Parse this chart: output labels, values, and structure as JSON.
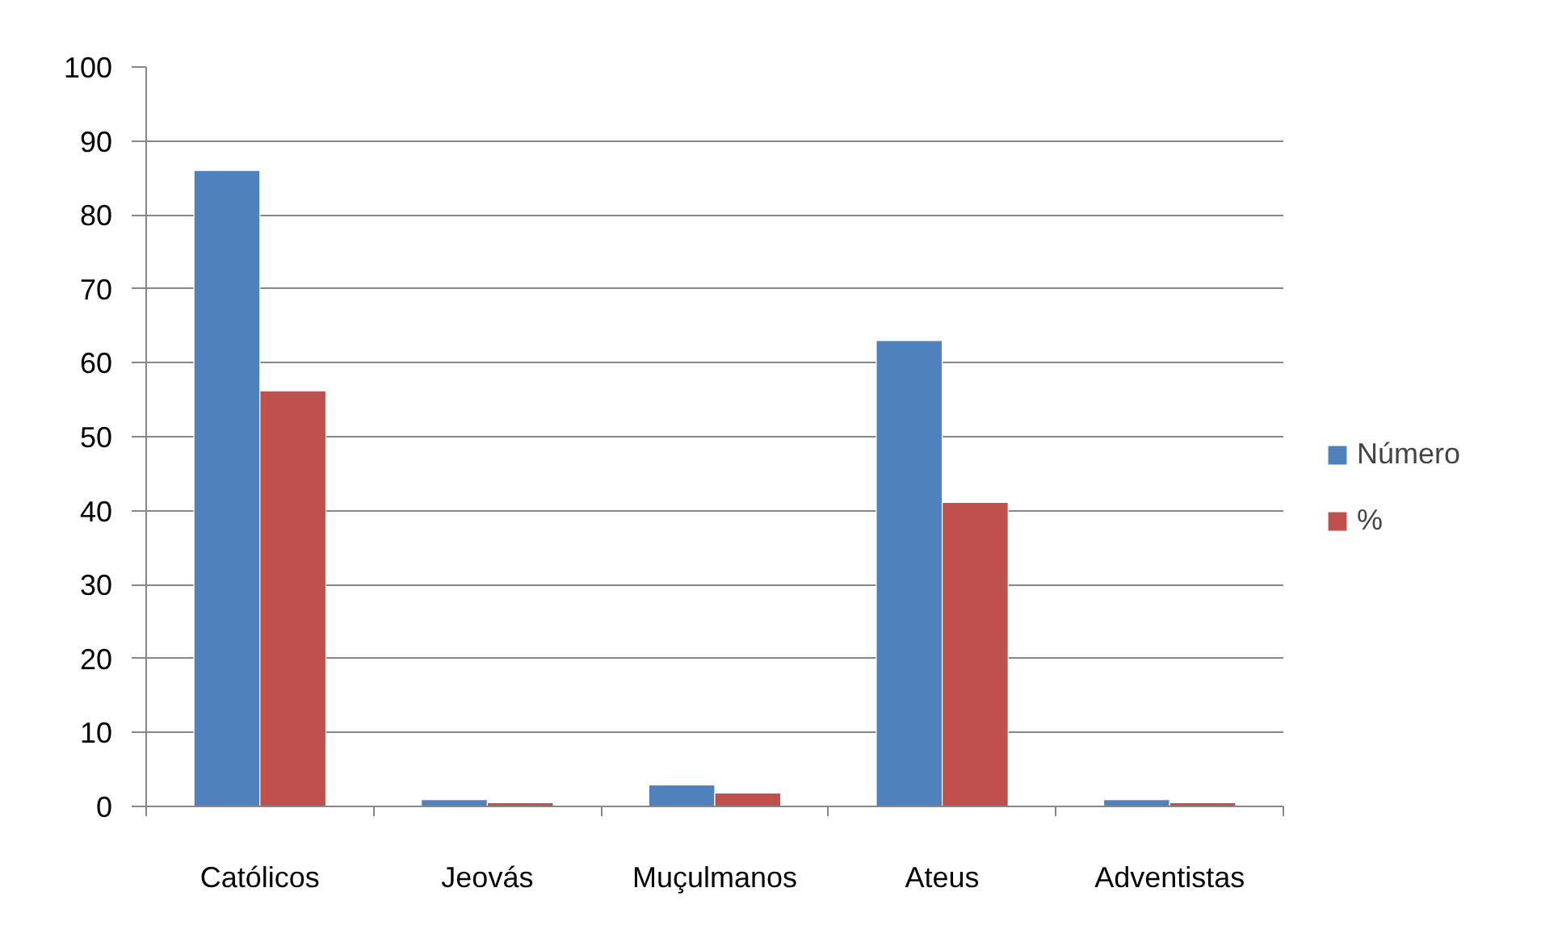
{
  "chart_data": {
    "type": "bar",
    "categories": [
      "Católicos",
      "Jeovás",
      "Muçulmanos",
      "Ateus",
      "Adventistas"
    ],
    "series": [
      {
        "name": "Número",
        "color": "#4f81bd",
        "values": [
          86,
          0.9,
          2.9,
          63,
          0.9
        ]
      },
      {
        "name": "%",
        "color": "#c0504d",
        "values": [
          56.2,
          0.5,
          1.8,
          41.1,
          0.5
        ]
      }
    ],
    "ylim": [
      0,
      100
    ],
    "yticks": [
      0,
      10,
      20,
      30,
      40,
      50,
      60,
      70,
      80,
      90,
      100
    ],
    "grid": "y",
    "legend": "right"
  }
}
